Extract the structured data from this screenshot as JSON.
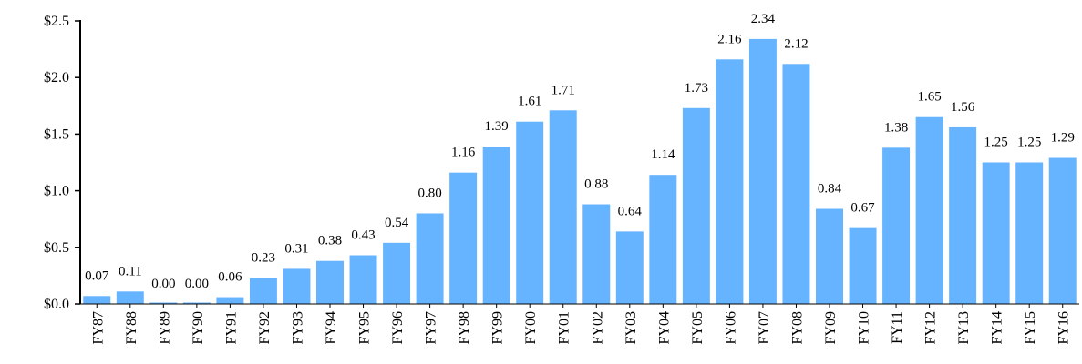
{
  "chart_data": {
    "type": "bar",
    "categories": [
      "FY87",
      "FY88",
      "FY89",
      "FY90",
      "FY91",
      "FY92",
      "FY93",
      "FY94",
      "FY95",
      "FY96",
      "FY97",
      "FY98",
      "FY99",
      "FY00",
      "FY01",
      "FY02",
      "FY03",
      "FY04",
      "FY05",
      "FY06",
      "FY07",
      "FY08",
      "FY09",
      "FY10",
      "FY11",
      "FY12",
      "FY13",
      "FY14",
      "FY15",
      "FY16"
    ],
    "values": [
      0.07,
      0.11,
      0.0,
      0.0,
      0.06,
      0.23,
      0.31,
      0.38,
      0.43,
      0.54,
      0.8,
      1.16,
      1.39,
      1.61,
      1.71,
      0.88,
      0.64,
      1.14,
      1.73,
      2.16,
      2.34,
      2.12,
      0.84,
      0.67,
      1.38,
      1.65,
      1.56,
      1.25,
      1.25,
      1.29
    ],
    "data_labels": [
      "0.07",
      "0.11",
      "0.00",
      "0.00",
      "0.06",
      "0.23",
      "0.31",
      "0.38",
      "0.43",
      "0.54",
      "0.80",
      "1.16",
      "1.39",
      "1.61",
      "1.71",
      "0.88",
      "0.64",
      "1.14",
      "1.73",
      "2.16",
      "2.34",
      "2.12",
      "0.84",
      "0.67",
      "1.38",
      "1.65",
      "1.56",
      "1.25",
      "1.25",
      "1.29"
    ],
    "y_ticks": [
      "$0.0",
      "$0.5",
      "$1.0",
      "$1.5",
      "$2.0",
      "$2.5"
    ],
    "y_tick_values": [
      0,
      0.5,
      1.0,
      1.5,
      2.0,
      2.5
    ],
    "ylim": [
      0,
      2.5
    ],
    "grid": false,
    "bar_color": "#66b3ff",
    "title": "",
    "xlabel": "",
    "ylabel": ""
  }
}
